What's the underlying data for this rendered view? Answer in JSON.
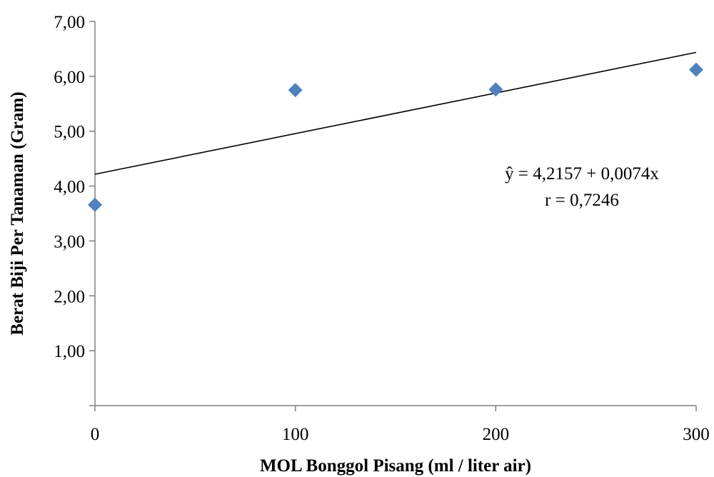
{
  "chart_data": {
    "type": "scatter",
    "xlabel": "MOL Bonggol Pisang (ml / liter air)",
    "ylabel": "Berat Biji Per Tanaman (Gram)",
    "xlim": [
      0,
      300
    ],
    "ylim": [
      0,
      7
    ],
    "x_ticks": [
      "0",
      "100",
      "200",
      "300"
    ],
    "y_ticks": [
      "1,00",
      "2,00",
      "3,00",
      "4,00",
      "5,00",
      "6,00",
      "7,00"
    ],
    "grid": false,
    "legend": "none",
    "marker_color": "#4F81BD",
    "series": [
      {
        "x": [
          0,
          100,
          200,
          300
        ],
        "y": [
          3.66,
          5.75,
          5.76,
          6.12
        ]
      }
    ],
    "trendline": {
      "intercept": 4.2157,
      "slope": 0.0074
    },
    "annotations": {
      "equation": "ŷ = 4,2157 + 0,0074x",
      "r": "r = 0,7246"
    }
  }
}
